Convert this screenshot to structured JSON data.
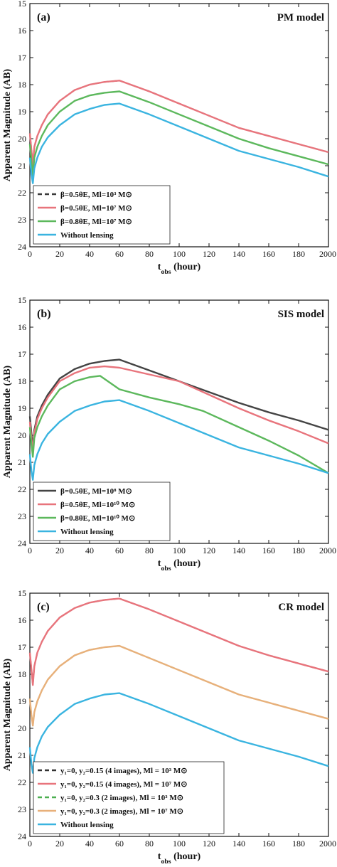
{
  "chart_data": [
    {
      "type": "line",
      "panel_label": "(a)",
      "model_label": "PM model",
      "xlabel": "t_obs (hour)",
      "ylabel": "Apparent Magnitude (AB)",
      "xlim": [
        0,
        200
      ],
      "ylim": [
        15,
        24
      ],
      "y_inverted": true,
      "x_ticks": [
        "0",
        "20",
        "40",
        "60",
        "80",
        "100",
        "120",
        "140",
        "160",
        "180",
        "2000"
      ],
      "y_ticks": [
        "15",
        "16",
        "17",
        "18",
        "19",
        "20",
        "21",
        "22",
        "23",
        "24"
      ],
      "legend_position": "lower-left",
      "series": [
        {
          "name": "β=0.5θE, Ml=10³ M⊙",
          "color": "#3a3a3a",
          "dashed": true,
          "x": [
            0,
            1,
            2,
            3,
            5,
            8,
            12,
            20,
            30,
            40,
            50,
            60,
            80,
            100,
            120,
            140,
            160,
            180,
            200
          ],
          "y": [
            19.8,
            20.4,
            21.0,
            20.3,
            19.9,
            19.5,
            19.1,
            18.6,
            18.2,
            18.0,
            17.9,
            17.85,
            18.25,
            18.7,
            19.15,
            19.6,
            19.9,
            20.2,
            20.5
          ]
        },
        {
          "name": "β=0.5θE, Ml=10⁷ M⊙",
          "color": "#e8747c",
          "dashed": false,
          "x": [
            0,
            1,
            2,
            3,
            5,
            8,
            12,
            20,
            30,
            40,
            50,
            60,
            80,
            100,
            120,
            140,
            160,
            180,
            200
          ],
          "y": [
            19.8,
            20.4,
            21.0,
            20.3,
            19.9,
            19.5,
            19.1,
            18.6,
            18.2,
            18.0,
            17.9,
            17.85,
            18.25,
            18.7,
            19.15,
            19.6,
            19.9,
            20.2,
            20.5
          ]
        },
        {
          "name": "β=0.8θE, Ml=10⁷ M⊙",
          "color": "#5cb85c",
          "dashed": false,
          "x": [
            0,
            1,
            2,
            3,
            5,
            8,
            12,
            20,
            30,
            40,
            50,
            60,
            80,
            100,
            120,
            140,
            160,
            180,
            200
          ],
          "y": [
            20.2,
            20.8,
            21.4,
            20.7,
            20.3,
            19.9,
            19.5,
            19.0,
            18.6,
            18.4,
            18.3,
            18.25,
            18.65,
            19.1,
            19.55,
            20.0,
            20.35,
            20.65,
            20.95
          ]
        },
        {
          "name": "Without lensing",
          "color": "#3ab4e0",
          "dashed": false,
          "x": [
            0,
            1,
            2,
            3,
            5,
            8,
            12,
            20,
            30,
            40,
            50,
            60,
            80,
            100,
            120,
            140,
            160,
            180,
            200
          ],
          "y": [
            20.7,
            21.3,
            21.65,
            21.1,
            20.7,
            20.3,
            19.95,
            19.5,
            19.1,
            18.9,
            18.75,
            18.7,
            19.1,
            19.55,
            20.0,
            20.45,
            20.75,
            21.05,
            21.4
          ]
        }
      ]
    },
    {
      "type": "line",
      "panel_label": "(b)",
      "model_label": "SIS model",
      "xlabel": "t_obs (hour)",
      "ylabel": "Apparent Magnitude (AB)",
      "xlim": [
        0,
        200
      ],
      "ylim": [
        15,
        24
      ],
      "y_inverted": true,
      "x_ticks": [
        "0",
        "20",
        "40",
        "60",
        "80",
        "100",
        "120",
        "140",
        "160",
        "180",
        "2000"
      ],
      "y_ticks": [
        "15",
        "16",
        "17",
        "18",
        "19",
        "20",
        "21",
        "22",
        "23",
        "24"
      ],
      "legend_position": "lower-left",
      "series": [
        {
          "name": "β=0.5θE, Ml=10⁸ M⊙",
          "color": "#444444",
          "dashed": false,
          "x": [
            0,
            1,
            2,
            3,
            5,
            8,
            12,
            20,
            30,
            40,
            50,
            60,
            80,
            100,
            120,
            140,
            160,
            180,
            200
          ],
          "y": [
            19.3,
            19.9,
            20.5,
            19.8,
            19.3,
            18.9,
            18.5,
            17.9,
            17.55,
            17.35,
            17.25,
            17.2,
            17.6,
            18.0,
            18.4,
            18.8,
            19.15,
            19.45,
            19.8
          ]
        },
        {
          "name": "β=0.5θE, Ml=10¹⁰ M⊙",
          "color": "#e8747c",
          "dashed": false,
          "x": [
            0,
            1,
            2,
            3,
            5,
            8,
            12,
            20,
            30,
            40,
            50,
            60,
            80,
            100,
            120,
            140,
            160,
            180,
            200
          ],
          "y": [
            19.5,
            20.1,
            20.6,
            19.9,
            19.4,
            19.0,
            18.6,
            18.0,
            17.7,
            17.5,
            17.45,
            17.5,
            17.75,
            18.0,
            18.5,
            19.0,
            19.45,
            19.85,
            20.3
          ]
        },
        {
          "name": "β=0.8θE, Ml=10¹⁰ M⊙",
          "color": "#5cb85c",
          "dashed": false,
          "x": [
            0,
            1,
            2,
            3,
            5,
            8,
            12,
            20,
            30,
            40,
            47,
            60,
            80,
            100,
            116,
            140,
            160,
            180,
            200
          ],
          "y": [
            19.7,
            20.3,
            20.8,
            20.1,
            19.7,
            19.3,
            18.9,
            18.3,
            18.0,
            17.85,
            17.8,
            18.3,
            18.6,
            18.85,
            19.1,
            19.7,
            20.2,
            20.75,
            21.4
          ]
        },
        {
          "name": "Without lensing",
          "color": "#3ab4e0",
          "dashed": false,
          "x": [
            0,
            1,
            2,
            3,
            5,
            8,
            12,
            20,
            30,
            40,
            50,
            60,
            80,
            100,
            120,
            140,
            160,
            180,
            200
          ],
          "y": [
            20.7,
            21.3,
            21.65,
            21.1,
            20.7,
            20.3,
            19.95,
            19.5,
            19.1,
            18.9,
            18.75,
            18.7,
            19.1,
            19.55,
            20.0,
            20.45,
            20.75,
            21.05,
            21.4
          ]
        }
      ]
    },
    {
      "type": "line",
      "panel_label": "(c)",
      "model_label": "CR model",
      "xlabel": "t_obs (hour)",
      "ylabel": "Apparent Magnitude (AB)",
      "xlim": [
        0,
        200
      ],
      "ylim": [
        15,
        24
      ],
      "y_inverted": true,
      "x_ticks": [
        "0",
        "20",
        "40",
        "60",
        "80",
        "100",
        "120",
        "140",
        "160",
        "180",
        "2000"
      ],
      "y_ticks": [
        "15",
        "16",
        "17",
        "18",
        "19",
        "20",
        "21",
        "22",
        "23",
        "24"
      ],
      "legend_position": "lower-left",
      "series": [
        {
          "name": "y₁=0, y₂=0.15 (4 images), Ml = 10³ M⊙",
          "color": "#333333",
          "dashed": true,
          "x": [
            0,
            1,
            2,
            3,
            5,
            8,
            12,
            20,
            30,
            40,
            50,
            60,
            80,
            100,
            120,
            140,
            160,
            180,
            200
          ],
          "y": [
            17.2,
            17.8,
            18.4,
            17.7,
            17.2,
            16.8,
            16.4,
            15.9,
            15.55,
            15.35,
            15.25,
            15.2,
            15.6,
            16.05,
            16.5,
            16.95,
            17.3,
            17.6,
            17.9
          ]
        },
        {
          "name": "y₁=0, y₂=0.15 (4 images), Ml = 10⁷ M⊙",
          "color": "#e8747c",
          "dashed": false,
          "x": [
            0,
            1,
            2,
            3,
            5,
            8,
            12,
            20,
            30,
            40,
            50,
            60,
            80,
            100,
            120,
            140,
            160,
            180,
            200
          ],
          "y": [
            17.2,
            17.8,
            18.4,
            17.7,
            17.2,
            16.8,
            16.4,
            15.9,
            15.55,
            15.35,
            15.25,
            15.2,
            15.6,
            16.05,
            16.5,
            16.95,
            17.3,
            17.6,
            17.9
          ]
        },
        {
          "name": "y₁=0, y₂=0.3 (2 images), Ml = 10³ M⊙",
          "color": "#4caf50",
          "dashed": true,
          "x": [
            0,
            1,
            2,
            3,
            5,
            8,
            12,
            20,
            30,
            40,
            50,
            60,
            80,
            100,
            120,
            140,
            160,
            180,
            200
          ],
          "y": [
            18.9,
            19.5,
            19.9,
            19.4,
            19.0,
            18.6,
            18.2,
            17.7,
            17.3,
            17.1,
            17.0,
            16.95,
            17.4,
            17.85,
            18.3,
            18.75,
            19.05,
            19.35,
            19.65
          ]
        },
        {
          "name": "y₁=0, y₂=0.3 (2 images), Ml = 10⁷ M⊙",
          "color": "#e8b07a",
          "dashed": false,
          "x": [
            0,
            1,
            2,
            3,
            5,
            8,
            12,
            20,
            30,
            40,
            50,
            60,
            80,
            100,
            120,
            140,
            160,
            180,
            200
          ],
          "y": [
            18.9,
            19.5,
            19.9,
            19.4,
            19.0,
            18.6,
            18.2,
            17.7,
            17.3,
            17.1,
            17.0,
            16.95,
            17.4,
            17.85,
            18.3,
            18.75,
            19.05,
            19.35,
            19.65
          ]
        },
        {
          "name": "Without lensing",
          "color": "#3ab4e0",
          "dashed": false,
          "x": [
            0,
            1,
            2,
            3,
            5,
            8,
            12,
            20,
            30,
            40,
            50,
            60,
            80,
            100,
            120,
            140,
            160,
            180,
            200
          ],
          "y": [
            20.7,
            21.3,
            21.65,
            21.1,
            20.7,
            20.3,
            19.95,
            19.5,
            19.1,
            18.9,
            18.75,
            18.7,
            19.1,
            19.55,
            20.0,
            20.45,
            20.75,
            21.05,
            21.4
          ]
        }
      ]
    }
  ]
}
